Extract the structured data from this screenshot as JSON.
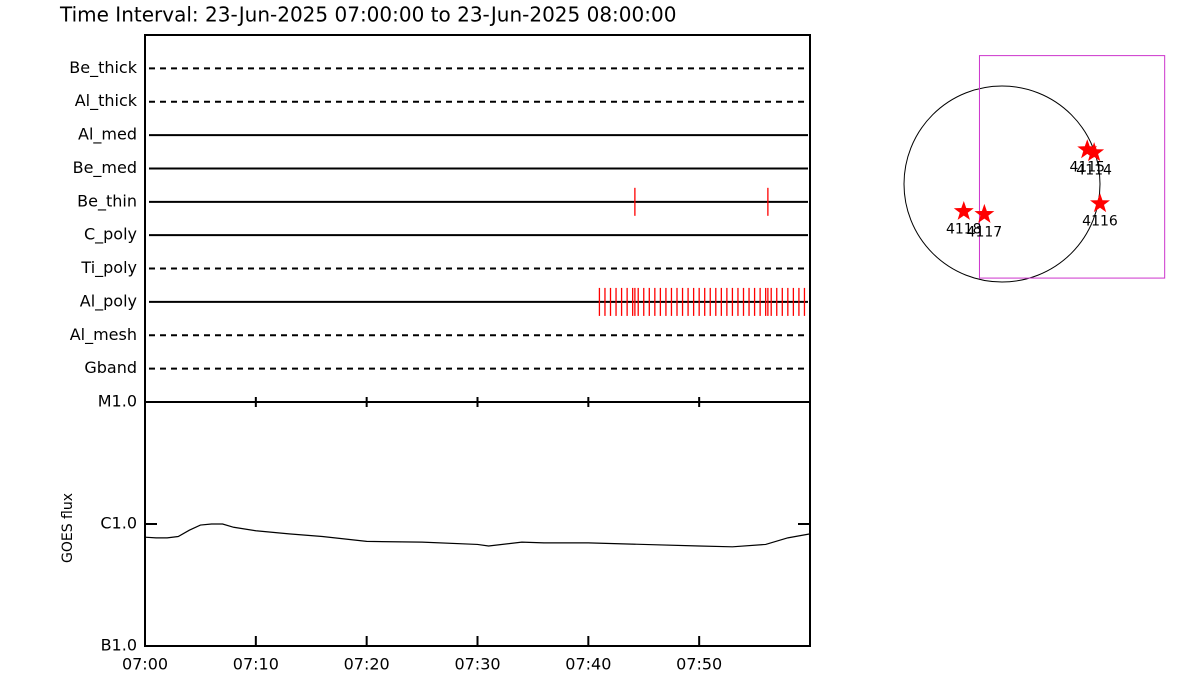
{
  "chart_data": [
    {
      "type": "timeline",
      "title": "Time Interval: 23-Jun-2025 07:00:00 to 23-Jun-2025 08:00:00",
      "categories": [
        "Be_thick",
        "Al_thick",
        "Al_med",
        "Be_med",
        "Be_thin",
        "C_poly",
        "Ti_poly",
        "Al_poly",
        "Al_mesh",
        "Gband"
      ],
      "line_styles": [
        "dashed",
        "dashed",
        "solid",
        "solid",
        "solid",
        "solid",
        "dashed",
        "solid",
        "dashed",
        "dashed"
      ],
      "events": [
        [],
        [],
        [],
        [],
        [
          44.2,
          56.2
        ],
        [],
        [],
        [
          41.0,
          41.5,
          42.0,
          42.5,
          43.0,
          43.5,
          44.0,
          44.2,
          44.5,
          45.0,
          45.5,
          46.0,
          46.5,
          47.0,
          47.5,
          48.0,
          48.5,
          49.0,
          49.5,
          50.0,
          50.5,
          51.0,
          51.5,
          52.0,
          52.5,
          53.0,
          53.5,
          54.0,
          54.5,
          55.0,
          55.5,
          56.0,
          56.2,
          56.5,
          57.0,
          57.5,
          58.0,
          58.5,
          59.0,
          59.5
        ],
        [],
        []
      ],
      "color": "#ff0000",
      "xlim": [
        0,
        60
      ]
    },
    {
      "type": "line",
      "ylabel": "GOES flux",
      "x": [
        0,
        1,
        2,
        3,
        4,
        5,
        6,
        7,
        8,
        10,
        13,
        16,
        20,
        25,
        30,
        31,
        34,
        36,
        40,
        45,
        50,
        53,
        56,
        58,
        60
      ],
      "values": [
        7.8e-07,
        7.7e-07,
        7.7e-07,
        7.9e-07,
        8.9e-07,
        9.8e-07,
        1e-06,
        1e-06,
        9.4e-07,
        8.8e-07,
        8.3e-07,
        7.9e-07,
        7.2e-07,
        7.1e-07,
        6.8e-07,
        6.6e-07,
        7.1e-07,
        7e-07,
        7e-07,
        6.8e-07,
        6.6e-07,
        6.5e-07,
        6.8e-07,
        7.7e-07,
        8.3e-07
      ],
      "color": "#000000",
      "log_scale": true,
      "xlim": [
        0,
        60
      ],
      "xticks": [
        {
          "value": 0,
          "label": "07:00"
        },
        {
          "value": 10,
          "label": "07:10"
        },
        {
          "value": 20,
          "label": "07:20"
        },
        {
          "value": 30,
          "label": "07:30"
        },
        {
          "value": 40,
          "label": "07:40"
        },
        {
          "value": 50,
          "label": "07:50"
        }
      ],
      "ylim": [
        1e-07,
        1e-05
      ],
      "yticks": [
        {
          "value": 1e-07,
          "label": "B1.0"
        },
        {
          "value": 1e-06,
          "label": "C1.0"
        },
        {
          "value": 1e-05,
          "label": "M1.0"
        }
      ]
    },
    {
      "type": "map",
      "regions": [
        {
          "label": "4118",
          "x": -0.39,
          "y": -0.28
        },
        {
          "label": "4117",
          "x": -0.18,
          "y": -0.31
        },
        {
          "label": "4115",
          "x": 0.87,
          "y": 0.35
        },
        {
          "label": "4114",
          "x": 0.94,
          "y": 0.32
        },
        {
          "label": "4116",
          "x": 1.0,
          "y": -0.2
        }
      ],
      "marker_color": "#ff0000",
      "fov": [
        -0.23,
        1.66,
        1.31,
        -0.96
      ],
      "fov_color": "#cc33cc"
    }
  ]
}
